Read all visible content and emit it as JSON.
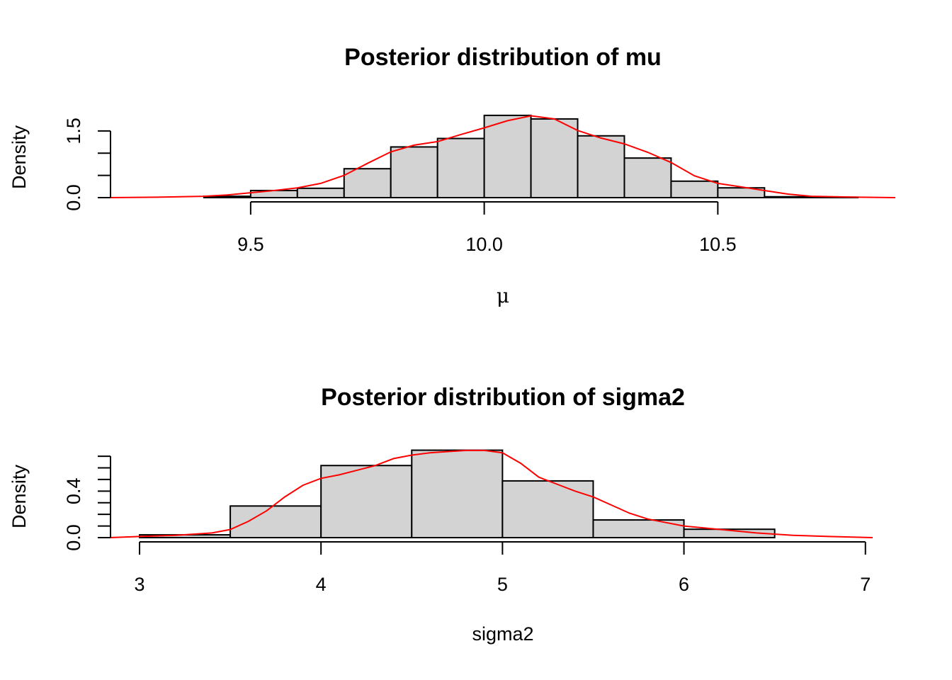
{
  "chart_data": [
    {
      "type": "bar",
      "title": "Posterior distribution of mu",
      "xlabel": "μ",
      "ylabel": "Density",
      "xlim": [
        9.2,
        10.88
      ],
      "ylim": [
        0,
        1.88
      ],
      "x_ticks": [
        9.5,
        10.0,
        10.5
      ],
      "x_tick_labels": [
        "9.5",
        "10.0",
        "10.5"
      ],
      "y_ticks": [
        0.0,
        0.5,
        1.0,
        1.5
      ],
      "y_tick_labels": [
        "0.0",
        "1.5"
      ],
      "bins": [
        {
          "x0": 9.2,
          "x1": 9.3,
          "density": 0.0
        },
        {
          "x0": 9.3,
          "x1": 9.4,
          "density": 0.0
        },
        {
          "x0": 9.4,
          "x1": 9.5,
          "density": 0.03
        },
        {
          "x0": 9.5,
          "x1": 9.6,
          "density": 0.16
        },
        {
          "x0": 9.6,
          "x1": 9.7,
          "density": 0.21
        },
        {
          "x0": 9.7,
          "x1": 9.8,
          "density": 0.65
        },
        {
          "x0": 9.8,
          "x1": 9.9,
          "density": 1.14
        },
        {
          "x0": 9.9,
          "x1": 10.0,
          "density": 1.33
        },
        {
          "x0": 10.0,
          "x1": 10.1,
          "density": 1.85
        },
        {
          "x0": 10.1,
          "x1": 10.2,
          "density": 1.77
        },
        {
          "x0": 10.2,
          "x1": 10.3,
          "density": 1.39
        },
        {
          "x0": 10.3,
          "x1": 10.4,
          "density": 0.89
        },
        {
          "x0": 10.4,
          "x1": 10.5,
          "density": 0.37
        },
        {
          "x0": 10.5,
          "x1": 10.6,
          "density": 0.22
        },
        {
          "x0": 10.6,
          "x1": 10.7,
          "density": 0.02
        },
        {
          "x0": 10.7,
          "x1": 10.8,
          "density": 0.01
        }
      ],
      "density_curve": {
        "color": "#ff0000",
        "x": [
          9.2,
          9.3,
          9.4,
          9.45,
          9.5,
          9.55,
          9.6,
          9.65,
          9.7,
          9.75,
          9.8,
          9.85,
          9.9,
          9.95,
          10.0,
          10.05,
          10.1,
          10.15,
          10.2,
          10.25,
          10.3,
          10.35,
          10.4,
          10.45,
          10.5,
          10.55,
          10.6,
          10.65,
          10.7,
          10.75,
          10.8,
          10.88
        ],
        "y": [
          0.0,
          0.01,
          0.03,
          0.06,
          0.11,
          0.16,
          0.22,
          0.32,
          0.5,
          0.77,
          1.03,
          1.18,
          1.26,
          1.42,
          1.57,
          1.73,
          1.84,
          1.77,
          1.51,
          1.34,
          1.21,
          1.02,
          0.79,
          0.49,
          0.32,
          0.24,
          0.16,
          0.08,
          0.03,
          0.02,
          0.01,
          0.0
        ]
      },
      "bar_fill": "#d3d3d3",
      "grid": false
    },
    {
      "type": "bar",
      "title": "Posterior distribution of sigma2",
      "xlabel": "sigma2",
      "ylabel": "Density",
      "xlim": [
        2.84,
        7.04
      ],
      "ylim": [
        0,
        0.725
      ],
      "x_ticks": [
        3,
        4,
        5,
        6,
        7
      ],
      "x_tick_labels": [
        "3",
        "4",
        "5",
        "6",
        "7"
      ],
      "y_ticks": [
        0.0,
        0.1,
        0.2,
        0.3,
        0.4,
        0.5,
        0.6,
        0.7
      ],
      "y_tick_labels": [
        "0.0",
        "0.4"
      ],
      "bins": [
        {
          "x0": 3.0,
          "x1": 3.5,
          "density": 0.024
        },
        {
          "x0": 3.5,
          "x1": 4.0,
          "density": 0.272
        },
        {
          "x0": 4.0,
          "x1": 4.5,
          "density": 0.62
        },
        {
          "x0": 4.5,
          "x1": 5.0,
          "density": 0.752
        },
        {
          "x0": 5.0,
          "x1": 5.5,
          "density": 0.488
        },
        {
          "x0": 5.5,
          "x1": 6.0,
          "density": 0.152
        },
        {
          "x0": 6.0,
          "x1": 6.5,
          "density": 0.072
        },
        {
          "x0": 6.5,
          "x1": 7.0,
          "density": 0.0
        }
      ],
      "density_curve": {
        "color": "#ff0000",
        "x": [
          2.84,
          3.0,
          3.2,
          3.4,
          3.5,
          3.6,
          3.7,
          3.8,
          3.9,
          4.0,
          4.1,
          4.2,
          4.3,
          4.4,
          4.5,
          4.6,
          4.7,
          4.8,
          4.9,
          5.0,
          5.1,
          5.2,
          5.3,
          5.4,
          5.5,
          5.6,
          5.7,
          5.8,
          5.9,
          6.0,
          6.2,
          6.4,
          6.6,
          6.8,
          7.04
        ],
        "y": [
          0.0,
          0.01,
          0.02,
          0.04,
          0.07,
          0.14,
          0.23,
          0.35,
          0.45,
          0.51,
          0.54,
          0.58,
          0.62,
          0.68,
          0.71,
          0.73,
          0.74,
          0.75,
          0.75,
          0.73,
          0.64,
          0.52,
          0.46,
          0.4,
          0.35,
          0.28,
          0.21,
          0.16,
          0.13,
          0.1,
          0.07,
          0.04,
          0.02,
          0.01,
          0.0
        ]
      },
      "bar_fill": "#d3d3d3",
      "grid": false
    }
  ]
}
